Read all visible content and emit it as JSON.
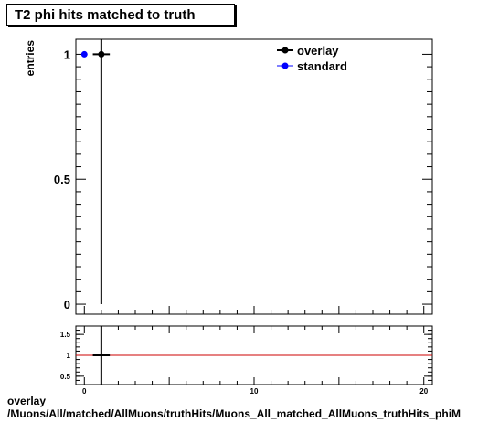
{
  "title": "T2 phi hits matched to truth",
  "footer": {
    "line1": "overlay",
    "line2": "/Muons/All/matched/AllMuons/truthHits/Muons_All_matched_AllMuons_truthHits_phiM"
  },
  "chart_data": [
    {
      "type": "scatter",
      "panel": "main",
      "ylabel": "entries",
      "xlim": [
        -0.5,
        20.5
      ],
      "ylim": [
        -0.04,
        1.06
      ],
      "y_tick_labels": [
        "0",
        "0.5",
        "1"
      ],
      "y_ticks": [
        0,
        0.5,
        1
      ],
      "legend_position": "top-right",
      "series": [
        {
          "name": "overlay",
          "color": "#000000",
          "points": [
            {
              "x": 1,
              "y": 1,
              "yerr_low": 1,
              "yerr_high": 1.06,
              "xerr": 0.5
            }
          ]
        },
        {
          "name": "standard",
          "color": "#0000ff",
          "points": [
            {
              "x": 0,
              "y": 1
            }
          ]
        }
      ]
    },
    {
      "type": "scatter",
      "panel": "ratio",
      "xlim": [
        -0.5,
        20.5
      ],
      "ylim": [
        0.3,
        1.7
      ],
      "x_ticks": [
        0,
        10,
        20
      ],
      "x_tick_labels": [
        "0",
        "10",
        "20"
      ],
      "y_ticks": [
        0.5,
        1,
        1.5
      ],
      "y_tick_labels": [
        "0.5",
        "1",
        "1.5"
      ],
      "reference_line": {
        "y": 1,
        "color": "#cc0000"
      },
      "series": [
        {
          "color": "#000000",
          "points": [
            {
              "x": 1,
              "y": 1,
              "yerr_low": 0.7,
              "yerr_high": 0.7,
              "xerr": 0.5
            }
          ]
        }
      ]
    }
  ]
}
